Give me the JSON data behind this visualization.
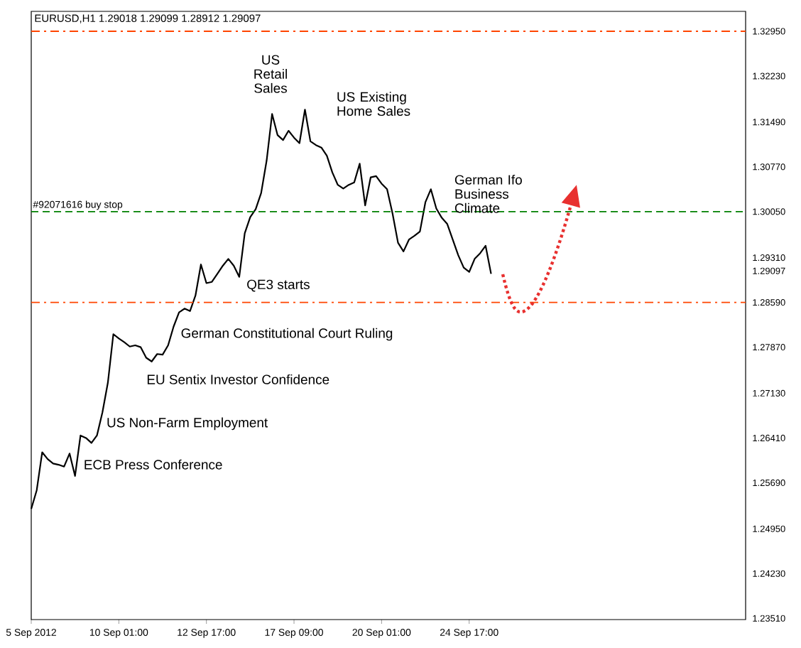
{
  "chart_data": {
    "type": "line",
    "title": "EURUSD,H1  1.29018 1.29099 1.28912 1.29097",
    "categories": [
      "5 Sep 2012",
      null,
      null,
      null,
      null,
      null,
      null,
      null,
      null,
      null,
      null,
      null,
      null,
      null,
      null,
      null,
      "10 Sep 01:00",
      null,
      null,
      null,
      null,
      null,
      null,
      null,
      null,
      null,
      null,
      null,
      null,
      null,
      null,
      null,
      "12 Sep 17:00",
      null,
      null,
      null,
      null,
      null,
      null,
      null,
      null,
      null,
      null,
      null,
      null,
      null,
      null,
      null,
      "17 Sep 09:00",
      null,
      null,
      null,
      null,
      null,
      null,
      null,
      null,
      null,
      null,
      null,
      null,
      null,
      null,
      null,
      "20 Sep 01:00",
      null,
      null,
      null,
      null,
      null,
      null,
      null,
      null,
      null,
      null,
      null,
      null,
      null,
      null,
      null,
      "24 Sep 17:00",
      null,
      null,
      null,
      null,
      null,
      null,
      null,
      null,
      null,
      null,
      null,
      null,
      null,
      null,
      null,
      null,
      null,
      null,
      null,
      null,
      null,
      null,
      null,
      null,
      null,
      null,
      null,
      null,
      null,
      null,
      null,
      null,
      null,
      null,
      null,
      null,
      null,
      null,
      null,
      null,
      null,
      null,
      null,
      null,
      null,
      null,
      null,
      null,
      null,
      null
    ],
    "ylim": [
      1.2349,
      1.3327
    ],
    "yticks": [
      {
        "value": 1.3295,
        "label": "1.32950"
      },
      {
        "value": 1.3223,
        "label": "1.32230"
      },
      {
        "value": 1.3149,
        "label": "1.31490"
      },
      {
        "value": 1.3077,
        "label": "1.30770"
      },
      {
        "value": 1.3005,
        "label": "1.30050"
      },
      {
        "value": 1.2931,
        "label": "1.29310"
      },
      {
        "value": 1.29097,
        "label": "1.29097"
      },
      {
        "value": 1.2859,
        "label": "1.28590"
      },
      {
        "value": 1.2787,
        "label": "1.27870"
      },
      {
        "value": 1.2713,
        "label": "1.27130"
      },
      {
        "value": 1.2641,
        "label": "1.26410"
      },
      {
        "value": 1.2569,
        "label": "1.25690"
      },
      {
        "value": 1.2495,
        "label": "1.24950"
      },
      {
        "value": 1.2423,
        "label": "1.24230"
      },
      {
        "value": 1.2351,
        "label": "1.23510"
      }
    ],
    "series": [
      {
        "color": "#000000",
        "values": [
          1.2527,
          1.2557,
          1.2618,
          1.2607,
          1.26,
          1.2598,
          1.2595,
          1.2616,
          1.258,
          1.2645,
          1.2641,
          1.2633,
          1.2645,
          1.2682,
          1.273,
          1.2808,
          1.2801,
          1.2795,
          1.2788,
          1.279,
          1.2787,
          1.277,
          1.2764,
          1.2776,
          1.2775,
          1.279,
          1.282,
          1.2843,
          1.2849,
          1.2845,
          1.287,
          1.292,
          1.289,
          1.2892,
          1.2905,
          1.2918,
          1.2929,
          1.2918,
          1.29,
          1.297,
          1.2996,
          1.3009,
          1.3035,
          1.3087,
          1.3162,
          1.3128,
          1.312,
          1.3135,
          1.3124,
          1.3115,
          1.3169,
          1.3118,
          1.3112,
          1.3108,
          1.3095,
          1.3068,
          1.3048,
          1.3042,
          1.3048,
          1.3052,
          1.3082,
          1.3015,
          1.306,
          1.3062,
          1.305,
          1.3041,
          1.3002,
          1.2955,
          1.2941,
          1.296,
          1.2966,
          1.2973,
          1.302,
          1.3041,
          1.301,
          1.2995,
          1.2985,
          1.296,
          1.2935,
          1.2915,
          1.2908,
          1.2929,
          1.2938,
          1.295,
          1.2905,
          null,
          null,
          null,
          null,
          null,
          null,
          null,
          null,
          null,
          null,
          null,
          null,
          null,
          null,
          null,
          null,
          null,
          null,
          null,
          null,
          null,
          null,
          null,
          null,
          null,
          null,
          null,
          null,
          null,
          null,
          null,
          null,
          null,
          null,
          null,
          null,
          null,
          null,
          null,
          null,
          null,
          null,
          null,
          null,
          null,
          null
        ]
      }
    ],
    "ref_lines": [
      {
        "axis": "y",
        "value": 1.3295,
        "color": "#ff4500",
        "line_style": "dashdot"
      },
      {
        "axis": "y",
        "value": 1.2859,
        "color": "#ff4500",
        "line_style": "dashdot"
      },
      {
        "axis": "y",
        "value": 1.3005,
        "label": "#92071616 buy stop",
        "color": "#008000",
        "line_style": "dashed"
      }
    ],
    "annotations": [
      "US Retail Sales",
      "US Existing Home Sales",
      "German Ifo Business Climate",
      "QE3 starts",
      "German Constitutional Court Ruling",
      "EU Sentix Investor Confidence",
      "US Non-Farm Employment",
      "ECB Press Conference"
    ]
  }
}
